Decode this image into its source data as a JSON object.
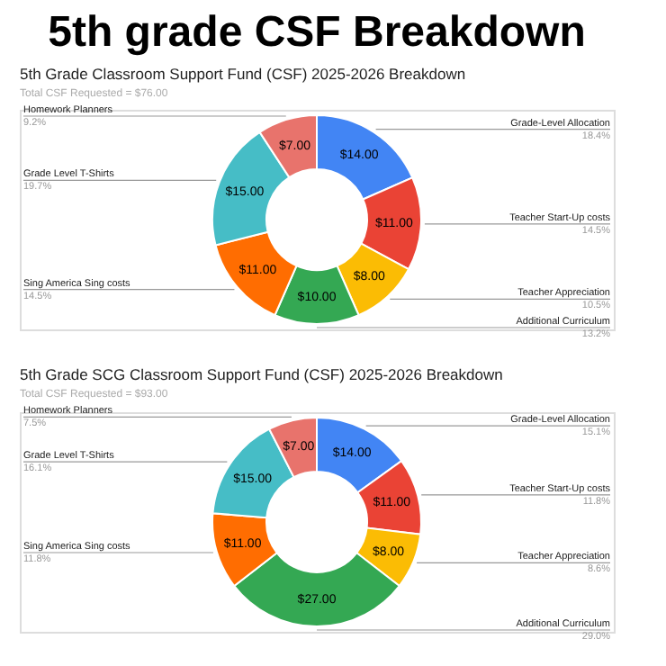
{
  "chart_data": [
    {
      "type": "donut",
      "title": "5th Grade Classroom Support Fund (CSF) 2025-2026 Breakdown",
      "subtitle": "Total CSF Requested = $76.00",
      "categories": [
        "Grade-Level Allocation",
        "Teacher Start-Up costs",
        "Teacher Appreciation",
        "Additional Curriculum",
        "Sing America Sing costs",
        "Grade Level T-Shirts",
        "Homework Planners"
      ],
      "values": [
        14,
        11,
        8,
        10,
        11,
        15,
        7
      ],
      "value_labels": [
        "$14.00",
        "$11.00",
        "$8.00",
        "$10.00",
        "$11.00",
        "$15.00",
        "$7.00"
      ],
      "colors": [
        "#4285f4",
        "#ea4335",
        "#fbbc04",
        "#34a853",
        "#ff6d01",
        "#46bdc6",
        "#e8736c"
      ],
      "legend": false,
      "annotations": [
        "5th grade CSF Breakdown",
        {
          "text": "18.4%",
          "x": "Grade-Level Allocation"
        },
        {
          "text": "14.5%",
          "x": "Teacher Start-Up costs"
        },
        {
          "text": "10.5%",
          "x": "Teacher Appreciation"
        },
        {
          "text": "13.2%",
          "x": "Additional Curriculum"
        },
        {
          "text": "14.5%",
          "x": "Sing America Sing costs"
        },
        {
          "text": "19.7%",
          "x": "Grade Level T-Shirts"
        },
        {
          "text": "9.2%",
          "x": "Homework Planners"
        }
      ]
    },
    {
      "type": "donut",
      "title": "5th Grade SCG Classroom Support Fund (CSF) 2025-2026 Breakdown",
      "subtitle": "Total CSF Requested = $93.00",
      "categories": [
        "Grade-Level Allocation",
        "Teacher Start-Up costs",
        "Teacher Appreciation",
        "Additional Curriculum",
        "Sing America Sing costs",
        "Grade Level T-Shirts",
        "Homework Planners"
      ],
      "values": [
        14,
        11,
        8,
        27,
        11,
        15,
        7
      ],
      "value_labels": [
        "$14.00",
        "$11.00",
        "$8.00",
        "$27.00",
        "$11.00",
        "$15.00",
        "$7.00"
      ],
      "colors": [
        "#4285f4",
        "#ea4335",
        "#fbbc04",
        "#34a853",
        "#ff6d01",
        "#46bdc6",
        "#e8736c"
      ],
      "legend": false,
      "annotations": [
        {
          "text": "15.1%",
          "x": "Grade-Level Allocation"
        },
        {
          "text": "11.8%",
          "x": "Teacher Start-Up costs"
        },
        {
          "text": "8.6%",
          "x": "Teacher Appreciation"
        },
        {
          "text": "29.0%",
          "x": "Additional Curriculum"
        },
        {
          "text": "11.8%",
          "x": "Sing America Sing costs"
        },
        {
          "text": "16.1%",
          "x": "Grade Level T-Shirts"
        },
        {
          "text": "7.5%",
          "x": "Homework Planners"
        }
      ]
    }
  ]
}
